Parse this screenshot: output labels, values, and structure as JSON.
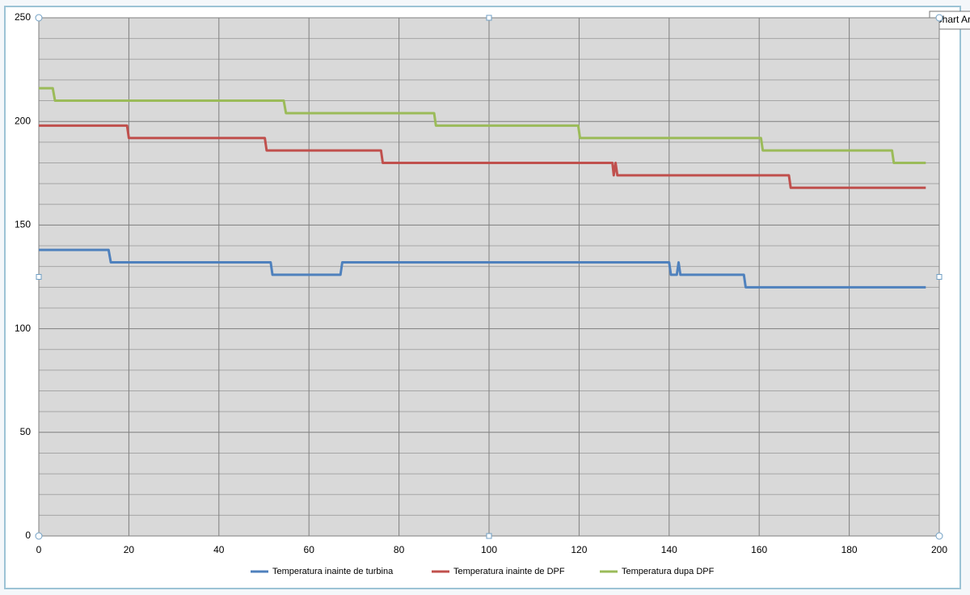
{
  "chart_data": {
    "type": "line",
    "tooltip": "Chart Ar",
    "xlim": [
      0,
      200
    ],
    "xticks": [
      0,
      20,
      40,
      60,
      80,
      100,
      120,
      140,
      160,
      180,
      200
    ],
    "ylim": [
      0,
      250
    ],
    "yticks": [
      0,
      50,
      100,
      150,
      200,
      250
    ],
    "yminorticks": [
      10,
      20,
      30,
      40,
      60,
      70,
      80,
      90,
      110,
      120,
      130,
      140,
      160,
      170,
      180,
      190,
      210,
      220,
      230,
      240
    ],
    "grid": true,
    "legend": "bottom",
    "plot_background": "#d9d9d9",
    "series": [
      {
        "name": "Temperatura inainte de turbina",
        "color": "#4f81bd",
        "x": [
          0,
          15.5,
          16,
          51.5,
          51.9,
          67,
          67.4,
          140,
          140.4,
          141.7,
          142.1,
          142.5,
          156.6,
          157,
          197
        ],
        "values": [
          138,
          138,
          132,
          132,
          126,
          126,
          132,
          132,
          126,
          126,
          132,
          126,
          126,
          120,
          120
        ]
      },
      {
        "name": "Temperatura inainte de DPF",
        "color": "#c0504d",
        "x": [
          0,
          19.6,
          20,
          50.2,
          50.6,
          76,
          76.4,
          127.4,
          127.7,
          128.1,
          128.5,
          166.6,
          167,
          197
        ],
        "values": [
          198,
          198,
          192,
          192,
          186,
          186,
          180,
          180,
          174,
          180,
          174,
          174,
          168,
          168
        ]
      },
      {
        "name": "Temperatura dupa DPF",
        "color": "#9bbb59",
        "x": [
          0,
          3.1,
          3.6,
          54.4,
          54.9,
          87.8,
          88.2,
          119.8,
          120.2,
          160.4,
          160.8,
          189.5,
          189.9,
          197
        ],
        "values": [
          216,
          216,
          210,
          210,
          204,
          204,
          198,
          198,
          192,
          192,
          186,
          186,
          180,
          180
        ]
      }
    ]
  }
}
